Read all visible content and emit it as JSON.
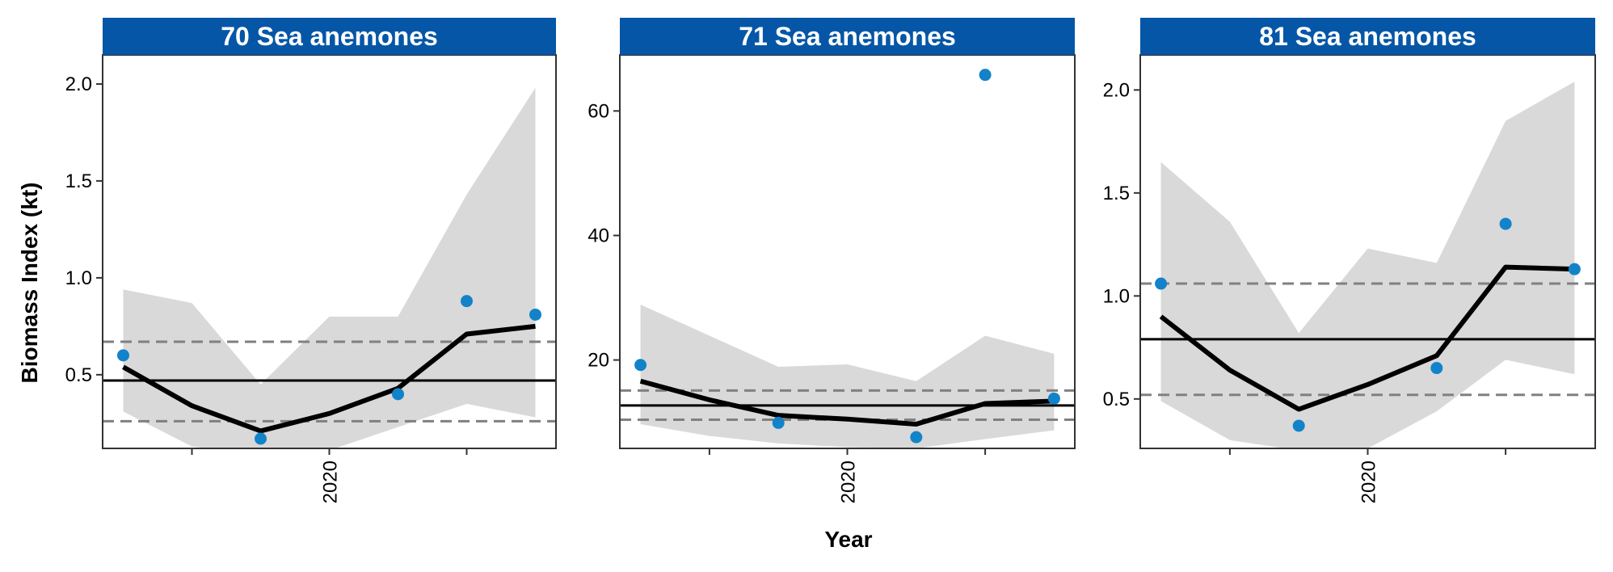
{
  "colors": {
    "strip": "#0556A6",
    "point": "#1283C9",
    "ribbon": "#D9D9D9",
    "trend": "#000000",
    "mean_line": "#000000",
    "sd_line": "#808080"
  },
  "chart_data": {
    "type": "line",
    "xlabel": "Year",
    "ylabel": "Biomass Index (kt)",
    "x_tick_labels": [
      "2020"
    ],
    "grid": false,
    "panels": [
      {
        "title": "70 Sea anemones",
        "x": [
          2017,
          2018,
          2019,
          2020,
          2021,
          2022,
          2023
        ],
        "points": [
          {
            "x": 2017,
            "y": 0.6
          },
          {
            "x": 2019,
            "y": 0.17
          },
          {
            "x": 2021,
            "y": 0.4
          },
          {
            "x": 2022,
            "y": 0.88
          },
          {
            "x": 2023,
            "y": 0.81
          }
        ],
        "trend": [
          0.54,
          0.34,
          0.21,
          0.3,
          0.43,
          0.71,
          0.75
        ],
        "ribbon_low": [
          0.31,
          0.13,
          0.09,
          0.11,
          0.23,
          0.35,
          0.28
        ],
        "ribbon_high": [
          0.94,
          0.87,
          0.45,
          0.8,
          0.8,
          1.43,
          1.98
        ],
        "mean": 0.47,
        "mean_plus_sd": 0.67,
        "mean_minus_sd": 0.26,
        "ylim": [
          0.12,
          2.15
        ],
        "yticks": [
          0.5,
          1.0,
          1.5,
          2.0
        ],
        "ytick_labels": [
          "0.5",
          "1.0",
          "1.5",
          "2.0"
        ],
        "xlim": [
          2016.7,
          2023.3
        ]
      },
      {
        "title": "71 Sea anemones",
        "x": [
          2017,
          2018,
          2019,
          2020,
          2021,
          2022,
          2023
        ],
        "points": [
          {
            "x": 2017,
            "y": 19.2
          },
          {
            "x": 2019,
            "y": 9.9
          },
          {
            "x": 2021,
            "y": 7.6
          },
          {
            "x": 2022,
            "y": 65.8
          },
          {
            "x": 2023,
            "y": 13.8
          }
        ],
        "trend": [
          16.6,
          13.6,
          11.1,
          10.5,
          9.7,
          13.0,
          13.4
        ],
        "ribbon_low": [
          9.7,
          7.8,
          6.6,
          6.0,
          5.8,
          7.3,
          8.7
        ],
        "ribbon_high": [
          28.9,
          23.9,
          18.9,
          19.3,
          16.6,
          23.9,
          21.0
        ],
        "mean": 12.7,
        "mean_plus_sd": 15.1,
        "mean_minus_sd": 10.4,
        "ylim": [
          5.8,
          69
        ],
        "yticks": [
          20,
          40,
          60
        ],
        "ytick_labels": [
          "20",
          "40",
          "60"
        ],
        "xlim": [
          2016.7,
          2023.3
        ]
      },
      {
        "title": "81 Sea anemones",
        "x": [
          2017,
          2018,
          2019,
          2020,
          2021,
          2022,
          2023
        ],
        "points": [
          {
            "x": 2017,
            "y": 1.06
          },
          {
            "x": 2019,
            "y": 0.37
          },
          {
            "x": 2021,
            "y": 0.65
          },
          {
            "x": 2022,
            "y": 1.35
          },
          {
            "x": 2023,
            "y": 1.13
          }
        ],
        "trend": [
          0.9,
          0.64,
          0.45,
          0.57,
          0.71,
          1.14,
          1.13
        ],
        "ribbon_low": [
          0.49,
          0.3,
          0.25,
          0.26,
          0.44,
          0.69,
          0.62
        ],
        "ribbon_high": [
          1.65,
          1.36,
          0.82,
          1.23,
          1.16,
          1.85,
          2.04
        ],
        "mean": 0.79,
        "mean_plus_sd": 1.06,
        "mean_minus_sd": 0.52,
        "ylim": [
          0.26,
          2.17
        ],
        "yticks": [
          0.5,
          1.0,
          1.5,
          2.0
        ],
        "ytick_labels": [
          "0.5",
          "1.0",
          "1.5",
          "2.0"
        ],
        "xlim": [
          2016.7,
          2023.3
        ]
      }
    ]
  }
}
